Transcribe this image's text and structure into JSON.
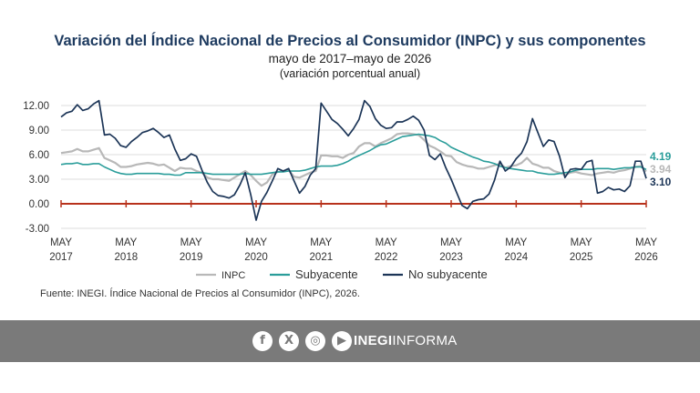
{
  "header": {
    "title": "Variación del Índice Nacional de Precios al Consumidor (INPC) y sus componentes",
    "subtitle": "mayo de 2017–mayo de 2026",
    "note": "(variación porcentual anual)"
  },
  "source": "Fuente: INEGI. Índice Nacional de Precios al Consumidor (INPC), 2026.",
  "footer": {
    "brand_bold": "INEGI",
    "brand_light": "INFORMA",
    "icons": [
      "facebook-icon",
      "x-icon",
      "instagram-icon",
      "youtube-icon"
    ]
  },
  "chart_data": {
    "type": "line",
    "ylim": [
      -3,
      12
    ],
    "yticks": [
      "12.00",
      "9.00",
      "6.00",
      "3.00",
      "0.00",
      "-3.00"
    ],
    "ytick_values": [
      12,
      9,
      6,
      3,
      0,
      -3
    ],
    "x_ticks": [
      {
        "top": "MAY",
        "bottom": "2017",
        "t": 0
      },
      {
        "top": "MAY",
        "bottom": "2018",
        "t": 12
      },
      {
        "top": "MAY",
        "bottom": "2019",
        "t": 24
      },
      {
        "top": "MAY",
        "bottom": "2020",
        "t": 36
      },
      {
        "top": "MAY",
        "bottom": "2021",
        "t": 48
      },
      {
        "top": "MAY",
        "bottom": "2022",
        "t": 60
      },
      {
        "top": "MAY",
        "bottom": "2023",
        "t": 72
      },
      {
        "top": "MAY",
        "bottom": "2024",
        "t": 84
      },
      {
        "top": "MAY",
        "bottom": "2025",
        "t": 96
      },
      {
        "top": "MAY",
        "bottom": "2026",
        "t": 108
      }
    ],
    "grid": true,
    "legend_position": "bottom",
    "colors": {
      "INPC": "#b8b8b8",
      "Subyacente": "#2a9d9a",
      "No subyacente": "#1c3557",
      "zero": "#b8321c"
    },
    "series": [
      {
        "name": "INPC",
        "color": "#b8b8b8",
        "values": [
          6.2,
          6.3,
          6.4,
          6.7,
          6.4,
          6.4,
          6.6,
          6.8,
          5.6,
          5.3,
          5.0,
          4.5,
          4.5,
          4.6,
          4.8,
          4.9,
          5.0,
          4.9,
          4.7,
          4.8,
          4.4,
          4.0,
          4.4,
          4.3,
          4.3,
          4.0,
          3.8,
          3.2,
          3.0,
          3.0,
          2.9,
          2.8,
          3.2,
          3.6,
          4.0,
          3.5,
          2.8,
          2.2,
          2.6,
          3.6,
          3.9,
          4.0,
          4.1,
          3.3,
          3.2,
          3.5,
          3.8,
          4.0,
          5.9,
          5.9,
          5.8,
          5.8,
          5.6,
          6.0,
          6.2,
          7.0,
          7.4,
          7.4,
          7.0,
          7.4,
          7.7,
          8.0,
          8.5,
          8.6,
          8.6,
          8.5,
          8.4,
          7.8,
          7.1,
          6.8,
          6.4,
          5.9,
          5.8,
          5.1,
          4.8,
          4.6,
          4.5,
          4.3,
          4.3,
          4.5,
          4.7,
          4.9,
          4.4,
          4.6,
          4.7,
          5.0,
          5.6,
          4.9,
          4.7,
          4.4,
          4.4,
          4.0,
          3.8,
          3.5,
          3.8,
          3.9,
          3.7,
          3.6,
          3.5,
          3.7,
          3.8,
          3.9,
          3.8,
          4.0,
          4.1,
          4.3,
          4.5,
          4.6,
          3.94
        ]
      },
      {
        "name": "Subyacente",
        "color": "#2a9d9a",
        "values": [
          4.8,
          4.9,
          4.9,
          5.0,
          4.8,
          4.8,
          4.9,
          4.9,
          4.5,
          4.2,
          3.9,
          3.7,
          3.6,
          3.6,
          3.7,
          3.7,
          3.7,
          3.7,
          3.7,
          3.6,
          3.6,
          3.5,
          3.5,
          3.8,
          3.8,
          3.8,
          3.8,
          3.7,
          3.6,
          3.6,
          3.6,
          3.6,
          3.6,
          3.6,
          3.7,
          3.6,
          3.6,
          3.6,
          3.7,
          3.8,
          3.9,
          3.9,
          4.0,
          4.0,
          4.0,
          4.1,
          4.3,
          4.5,
          4.6,
          4.6,
          4.6,
          4.7,
          4.9,
          5.2,
          5.6,
          5.9,
          6.2,
          6.5,
          6.9,
          7.2,
          7.3,
          7.6,
          7.9,
          8.2,
          8.3,
          8.4,
          8.5,
          8.4,
          8.3,
          8.1,
          7.7,
          7.4,
          6.9,
          6.6,
          6.3,
          6.0,
          5.7,
          5.5,
          5.2,
          5.1,
          4.9,
          4.6,
          4.4,
          4.3,
          4.2,
          4.1,
          4.0,
          4.0,
          3.8,
          3.7,
          3.6,
          3.6,
          3.7,
          3.8,
          3.9,
          4.1,
          4.2,
          4.2,
          4.2,
          4.3,
          4.3,
          4.3,
          4.2,
          4.3,
          4.4,
          4.4,
          4.5,
          4.5,
          4.19
        ]
      },
      {
        "name": "No subyacente",
        "color": "#1c3557",
        "values": [
          10.6,
          11.1,
          11.3,
          12.1,
          11.4,
          11.6,
          12.2,
          12.6,
          8.4,
          8.5,
          8.0,
          7.1,
          6.9,
          7.6,
          8.1,
          8.7,
          8.9,
          9.2,
          8.7,
          8.1,
          8.4,
          6.7,
          5.3,
          5.5,
          6.1,
          5.8,
          4.1,
          2.6,
          1.5,
          1.0,
          0.9,
          0.7,
          1.1,
          2.3,
          3.8,
          1.1,
          -2.0,
          0.3,
          1.4,
          2.8,
          4.3,
          4.0,
          4.3,
          2.8,
          1.3,
          2.1,
          3.5,
          4.3,
          12.3,
          11.3,
          10.3,
          9.8,
          9.1,
          8.3,
          9.2,
          10.3,
          12.6,
          11.9,
          10.4,
          9.6,
          9.2,
          9.3,
          10.0,
          10.0,
          10.3,
          10.7,
          10.2,
          9.0,
          5.9,
          5.4,
          6.1,
          4.4,
          3.0,
          1.4,
          -0.2,
          -0.6,
          0.3,
          0.5,
          0.6,
          1.2,
          2.9,
          5.2,
          4.0,
          4.5,
          5.5,
          6.2,
          7.6,
          10.4,
          8.7,
          7.0,
          7.8,
          7.6,
          5.8,
          3.2,
          4.2,
          4.3,
          4.2,
          5.1,
          5.3,
          1.3,
          1.5,
          2.0,
          1.7,
          1.8,
          1.5,
          2.2,
          5.2,
          5.2,
          3.1
        ]
      }
    ],
    "end_labels": [
      {
        "series": "Subyacente",
        "text": "4.19",
        "color": "#2a9d9a"
      },
      {
        "series": "INPC",
        "text": "3.94",
        "color": "#b8b8b8"
      },
      {
        "series": "No subyacente",
        "text": "3.10",
        "color": "#1c3557"
      }
    ]
  }
}
